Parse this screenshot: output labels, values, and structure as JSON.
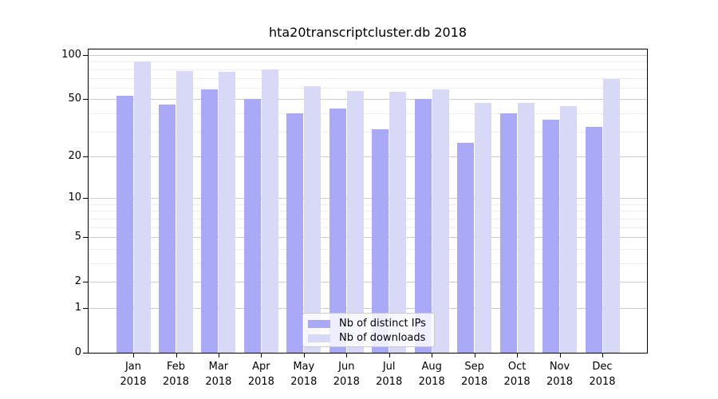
{
  "chart_data": {
    "type": "bar",
    "title": "hta20transcriptcluster.db 2018",
    "year": "2018",
    "categories": [
      "Jan",
      "Feb",
      "Mar",
      "Apr",
      "May",
      "Jun",
      "Jul",
      "Aug",
      "Sep",
      "Oct",
      "Nov",
      "Dec"
    ],
    "series": [
      {
        "name": "Nb of distinct IPs",
        "color": "#a9a9f7",
        "values": [
          53,
          46,
          58,
          50,
          40,
          43,
          31,
          50,
          25,
          40,
          36,
          32
        ]
      },
      {
        "name": "Nb of downloads",
        "color": "#d8d8f7",
        "values": [
          91,
          78,
          77,
          80,
          61,
          57,
          56,
          58,
          47,
          47,
          45,
          69
        ]
      }
    ],
    "xlabel": "",
    "ylabel": "",
    "y_scale": "log1p",
    "y_major_ticks": [
      0,
      1,
      2,
      5,
      10,
      20,
      50,
      100
    ],
    "y_minor_gridlines": [
      3,
      4,
      6,
      7,
      8,
      9,
      30,
      40,
      60,
      70,
      80,
      90
    ],
    "ylim": [
      0,
      113
    ],
    "grid": "on",
    "legend_position": "lower center"
  },
  "colors": {
    "bar_distinct_ips": "#a9a9f7",
    "bar_downloads": "#d8d8f7",
    "grid_major": "#cccccc",
    "grid_minor": "#ededed",
    "axis": "#000000",
    "background": "#ffffff"
  }
}
